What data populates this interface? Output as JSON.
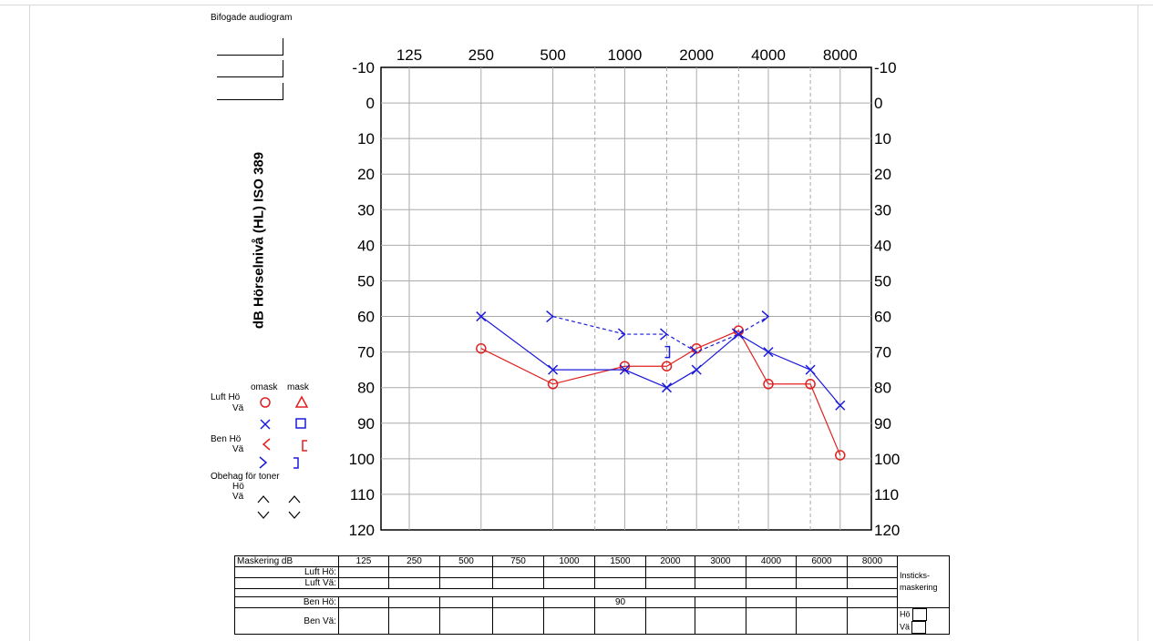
{
  "attachment": {
    "title": "Bifogade audiogram"
  },
  "colors": {
    "right": "#e02020",
    "left": "#1a1adc",
    "grid": "#aaaaaa"
  },
  "chart_data": {
    "type": "line",
    "ylabel": "dB Hörselnivå (HL) ISO 389",
    "x_ticks": [
      "125",
      "250",
      "500",
      "1000",
      "2000",
      "4000",
      "8000"
    ],
    "y_ticks": [
      "-10",
      "0",
      "10",
      "20",
      "30",
      "40",
      "50",
      "60",
      "70",
      "80",
      "90",
      "100",
      "110",
      "120"
    ],
    "ylim": [
      -10,
      120
    ],
    "y_inverted": true,
    "x_scale": "log",
    "grid": true,
    "series": [
      {
        "key": "air_right",
        "color": "#e02020",
        "marker": "circle",
        "line": "solid",
        "points": [
          [
            250,
            69
          ],
          [
            500,
            79
          ],
          [
            1000,
            74
          ],
          [
            1500,
            74
          ],
          [
            2000,
            69
          ],
          [
            3000,
            64
          ],
          [
            4000,
            79
          ],
          [
            6000,
            79
          ],
          [
            8000,
            99
          ]
        ]
      },
      {
        "key": "air_left",
        "color": "#1a1adc",
        "marker": "x",
        "line": "solid",
        "points": [
          [
            250,
            60
          ],
          [
            500,
            75
          ],
          [
            1000,
            75
          ],
          [
            1500,
            80
          ],
          [
            2000,
            75
          ],
          [
            3000,
            65
          ],
          [
            4000,
            70
          ],
          [
            6000,
            75
          ],
          [
            8000,
            85
          ]
        ]
      },
      {
        "key": "bone_left_unmasked",
        "color": "#1a1adc",
        "marker": "gt",
        "line": "dashed",
        "points": [
          [
            500,
            60
          ],
          [
            1000,
            65
          ],
          [
            1500,
            65
          ],
          [
            2000,
            70
          ],
          [
            3000,
            65
          ],
          [
            4000,
            60
          ]
        ]
      },
      {
        "key": "bone_left_masked",
        "color": "#1a1adc",
        "marker": "bracket-right",
        "line": "none",
        "points": [
          [
            1500,
            70
          ]
        ]
      }
    ]
  },
  "legend": {
    "col_unmasked": "omask",
    "col_masked": "mask",
    "air_label": "Luft Hö",
    "air_left_label": "Vä",
    "bone_label": "Ben Hö",
    "bone_left_label": "Vä",
    "discomfort_label": "Obehag för toner",
    "discomfort_right_label": "Hö",
    "discomfort_left_label": "Vä"
  },
  "masking": {
    "title": "Maskering dB",
    "frequencies": [
      "125",
      "250",
      "500",
      "750",
      "1000",
      "1500",
      "2000",
      "3000",
      "4000",
      "6000",
      "8000"
    ],
    "rows": [
      {
        "label": "Luft Hö:",
        "values": [
          "",
          "",
          "",
          "",
          "",
          "",
          "",
          "",
          "",
          "",
          ""
        ]
      },
      {
        "label": "Luft Vä:",
        "values": [
          "",
          "",
          "",
          "",
          "",
          "",
          "",
          "",
          "",
          "",
          ""
        ]
      },
      {
        "label": "Ben Hö:",
        "values": [
          "",
          "",
          "",
          "",
          "",
          "90",
          "",
          "",
          "",
          "",
          ""
        ]
      },
      {
        "label": "Ben Vä:",
        "values": [
          "",
          "",
          "",
          "",
          "",
          "",
          "",
          "",
          "",
          "",
          ""
        ]
      }
    ],
    "insert_label_1": "Insticks-",
    "insert_label_2": "maskering",
    "insert_right": "Hö",
    "insert_left": "Vä"
  }
}
